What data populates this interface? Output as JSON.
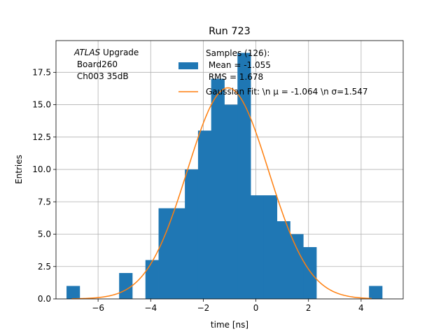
{
  "chart_data": {
    "type": "bar",
    "title": "Run 723",
    "xlabel": "time [ns]",
    "ylabel": "Entries",
    "xlim": [
      -7.6,
      5.6
    ],
    "ylim": [
      0,
      19.95
    ],
    "grid": true,
    "legend_position": "top-right",
    "xticks": [
      {
        "value": -6,
        "label": "−6"
      },
      {
        "value": -4,
        "label": "−4"
      },
      {
        "value": -2,
        "label": "−2"
      },
      {
        "value": 0,
        "label": "0"
      },
      {
        "value": 2,
        "label": "2"
      },
      {
        "value": 4,
        "label": "4"
      }
    ],
    "yticks": [
      {
        "value": 0,
        "label": "0.0"
      },
      {
        "value": 2.5,
        "label": "2.5"
      },
      {
        "value": 5,
        "label": "5.0"
      },
      {
        "value": 7.5,
        "label": "7.5"
      },
      {
        "value": 10,
        "label": "10.0"
      },
      {
        "value": 12.5,
        "label": "12.5"
      },
      {
        "value": 15,
        "label": "15.0"
      },
      {
        "value": 17.5,
        "label": "17.5"
      }
    ],
    "annotation": {
      "italic": "ATLAS",
      "line1_rest": " Upgrade",
      "line2": " Board260",
      "line3": " Ch003 35dB"
    },
    "histogram": {
      "name_lines": [
        "Samples (126):",
        " Mean = -1.055",
        " RMS = 1.678"
      ],
      "color": "#1f77b4",
      "bins": [
        {
          "x0": -7.2,
          "x1": -6.7,
          "count": 1
        },
        {
          "x0": -5.2,
          "x1": -4.7,
          "count": 2
        },
        {
          "x0": -4.2,
          "x1": -3.7,
          "count": 3
        },
        {
          "x0": -3.7,
          "x1": -3.2,
          "count": 7
        },
        {
          "x0": -3.2,
          "x1": -2.7,
          "count": 7
        },
        {
          "x0": -2.7,
          "x1": -2.2,
          "count": 10
        },
        {
          "x0": -2.2,
          "x1": -1.7,
          "count": 13
        },
        {
          "x0": -1.7,
          "x1": -1.2,
          "count": 17
        },
        {
          "x0": -1.2,
          "x1": -0.7,
          "count": 15
        },
        {
          "x0": -0.7,
          "x1": -0.2,
          "count": 19
        },
        {
          "x0": -0.2,
          "x1": 0.3,
          "count": 8
        },
        {
          "x0": 0.3,
          "x1": 0.8,
          "count": 8
        },
        {
          "x0": 0.8,
          "x1": 1.3,
          "count": 6
        },
        {
          "x0": 1.3,
          "x1": 1.8,
          "count": 5
        },
        {
          "x0": 1.8,
          "x1": 2.3,
          "count": 4
        },
        {
          "x0": 4.3,
          "x1": 4.8,
          "count": 1
        }
      ]
    },
    "fit": {
      "name": "Gaussian Fit: \\n μ = -1.064 \\n σ=1.547",
      "color": "#ff7f0e",
      "amplitude": 16.3,
      "mu": -1.064,
      "sigma": 1.547,
      "x_range": [
        -7.0,
        4.4
      ]
    }
  }
}
